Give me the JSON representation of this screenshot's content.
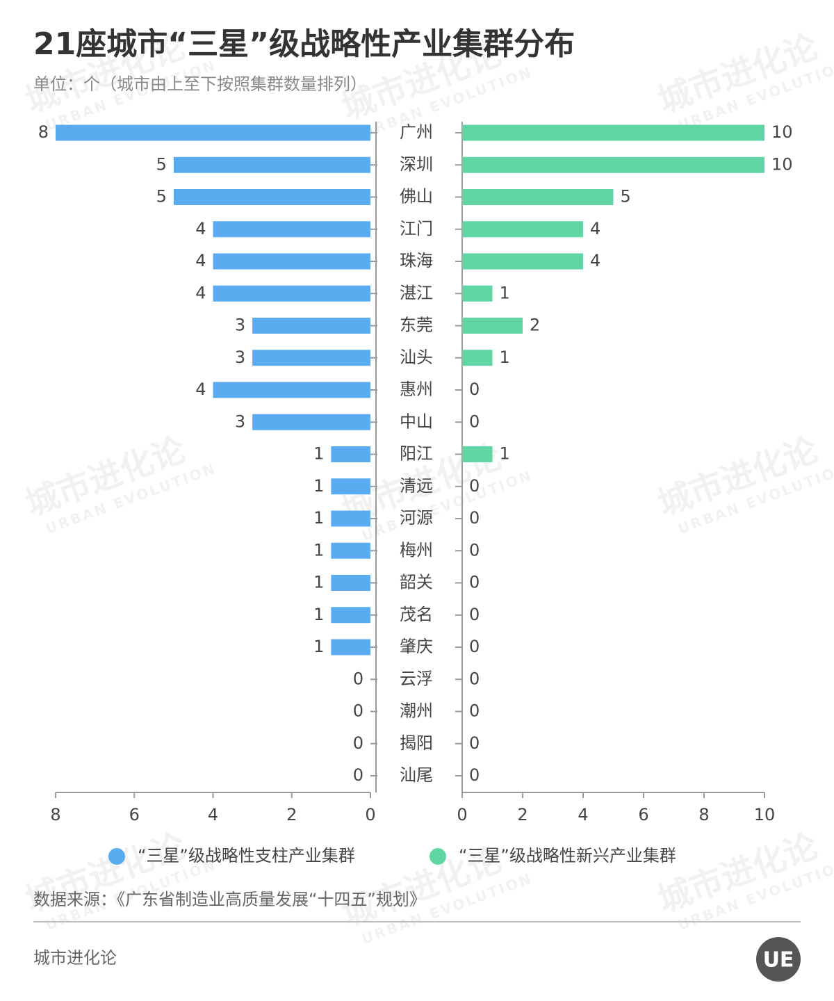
{
  "chart_data": {
    "type": "butterfly",
    "title": "21座城市“三星”级战略性产业集群分布",
    "subtitle": "单位：个（城市由上至下按照集群数量排列）",
    "categories": [
      "广州",
      "深圳",
      "佛山",
      "江门",
      "珠海",
      "湛江",
      "东莞",
      "汕头",
      "惠州",
      "中山",
      "阳江",
      "清远",
      "河源",
      "梅州",
      "韶关",
      "茂名",
      "肇庆",
      "云浮",
      "潮州",
      "揭阳",
      "汕尾"
    ],
    "series": [
      {
        "name": "“三星”级战略性支柱产业集群",
        "color": "#5aabf0",
        "side": "left",
        "values": [
          8,
          5,
          5,
          4,
          4,
          4,
          3,
          3,
          4,
          3,
          1,
          1,
          1,
          1,
          1,
          1,
          1,
          0,
          0,
          0,
          0
        ],
        "xlim": [
          0,
          8
        ],
        "xticks": [
          0,
          2,
          4,
          6,
          8
        ]
      },
      {
        "name": "“三星”级战略性新兴产业集群",
        "color": "#5fd6a4",
        "side": "right",
        "values": [
          10,
          10,
          5,
          4,
          4,
          1,
          2,
          1,
          0,
          0,
          1,
          0,
          0,
          0,
          0,
          0,
          0,
          0,
          0,
          0,
          0
        ],
        "xlim": [
          0,
          10
        ],
        "xticks": [
          0,
          2,
          4,
          6,
          8,
          10
        ]
      }
    ],
    "source": "数据来源：《广东省制造业高质量发展“十四五”规划》",
    "footer": "城市进化论",
    "logo": "UE",
    "watermark": [
      "城市进化论",
      "URBAN EVOLUTION"
    ]
  }
}
